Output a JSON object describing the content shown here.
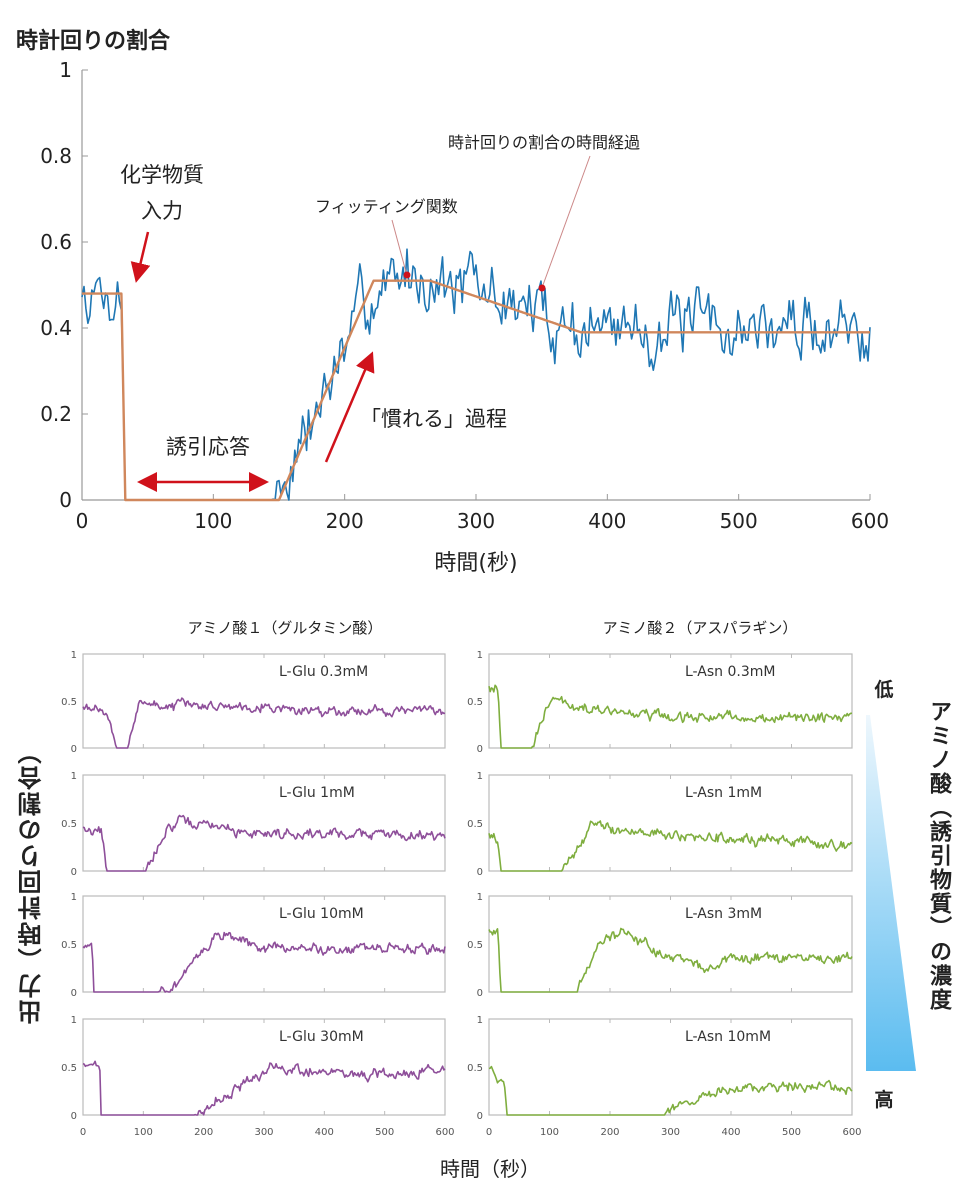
{
  "chart_data": [
    {
      "type": "line",
      "title": "時計回りの割合",
      "ylabel": "時計回りの割合",
      "xlabel": "時間(秒)",
      "xlim": [
        0,
        600
      ],
      "ylim": [
        0,
        1
      ],
      "xticks": [
        0,
        100,
        200,
        300,
        400,
        500,
        600
      ],
      "yticks": [
        "0",
        "0.2",
        "0.4",
        "0.6",
        "0.8",
        "1"
      ],
      "series": [
        {
          "name": "時計回りの割合の時間経過",
          "color": "#1f77b4",
          "noise": 0.05,
          "trend": [
            [
              0,
              0.48
            ],
            [
              30,
              0.48
            ],
            [
              33,
              0
            ],
            [
              145,
              0
            ],
            [
              150,
              0.02
            ],
            [
              185,
              0.25
            ],
            [
              220,
              0.48
            ],
            [
              250,
              0.53
            ],
            [
              270,
              0.52
            ],
            [
              380,
              0.4
            ],
            [
              600,
              0.4
            ]
          ]
        },
        {
          "name": "フィッティング関数",
          "color": "#d0875c",
          "noise": 0,
          "trend": [
            [
              0,
              0.48
            ],
            [
              30,
              0.48
            ],
            [
              33,
              0
            ],
            [
              150,
              0
            ],
            [
              222,
              0.51
            ],
            [
              265,
              0.51
            ],
            [
              380,
              0.39
            ],
            [
              600,
              0.39
            ]
          ]
        }
      ],
      "annotations": {
        "chemical_input_1": "化学物質",
        "chemical_input_2": "入力",
        "induced_response": "誘引応答",
        "habituation": "「慣れる」過程",
        "fitting": "フィッティング関数",
        "time_course": "時計回りの割合の時間経過"
      }
    },
    {
      "type": "line",
      "columns": [
        "アミノ酸１（グルタミン酸）",
        "アミノ酸２（アスパラギン）"
      ],
      "ylabel": "出力（時計回りの割合）",
      "xlabel": "時間（秒）",
      "concentration_label": "アミノ酸（誘引物質）の濃度",
      "low": "低",
      "high": "高",
      "xlim": [
        0,
        600
      ],
      "ylim": [
        0,
        1
      ],
      "xticks": [
        "0",
        "100",
        "200",
        "300",
        "400",
        "500",
        "600"
      ],
      "yticks": [
        "0",
        "0.5",
        "1"
      ],
      "panels": [
        {
          "label": "L-Glu 0.3mM",
          "col": 0,
          "color": "#8e4f9a",
          "trend": [
            [
              0,
              0.48
            ],
            [
              20,
              0.45
            ],
            [
              40,
              0.35
            ],
            [
              55,
              0
            ],
            [
              75,
              0
            ],
            [
              95,
              0.55
            ],
            [
              110,
              0.45
            ],
            [
              300,
              0.45
            ],
            [
              350,
              0.4
            ],
            [
              600,
              0.4
            ]
          ]
        },
        {
          "label": "L-Glu 1mM",
          "col": 0,
          "color": "#8e4f9a",
          "trend": [
            [
              0,
              0.45
            ],
            [
              30,
              0.42
            ],
            [
              40,
              0
            ],
            [
              105,
              0
            ],
            [
              140,
              0.45
            ],
            [
              160,
              0.5
            ],
            [
              230,
              0.47
            ],
            [
              250,
              0.4
            ],
            [
              600,
              0.38
            ]
          ]
        },
        {
          "label": "L-Glu 10mM",
          "col": 0,
          "color": "#8e4f9a",
          "trend": [
            [
              0,
              0.5
            ],
            [
              15,
              0.45
            ],
            [
              18,
              0
            ],
            [
              125,
              0
            ],
            [
              160,
              0.1
            ],
            [
              220,
              0.6
            ],
            [
              260,
              0.55
            ],
            [
              300,
              0.45
            ],
            [
              600,
              0.45
            ]
          ]
        },
        {
          "label": "L-Glu 30mM",
          "col": 0,
          "color": "#8e4f9a",
          "trend": [
            [
              0,
              0.55
            ],
            [
              28,
              0.5
            ],
            [
              30,
              0
            ],
            [
              185,
              0
            ],
            [
              260,
              0.3
            ],
            [
              310,
              0.48
            ],
            [
              400,
              0.45
            ],
            [
              500,
              0.4
            ],
            [
              600,
              0.5
            ]
          ]
        },
        {
          "label": "L-Asn 0.3mM",
          "col": 1,
          "color": "#7fae3f",
          "trend": [
            [
              0,
              0.65
            ],
            [
              15,
              0.65
            ],
            [
              20,
              0
            ],
            [
              70,
              0
            ],
            [
              90,
              0.35
            ],
            [
              110,
              0.52
            ],
            [
              150,
              0.42
            ],
            [
              300,
              0.32
            ],
            [
              600,
              0.32
            ]
          ]
        },
        {
          "label": "L-Asn 1mM",
          "col": 1,
          "color": "#7fae3f",
          "trend": [
            [
              0,
              0.4
            ],
            [
              15,
              0.3
            ],
            [
              20,
              0
            ],
            [
              120,
              0
            ],
            [
              170,
              0.48
            ],
            [
              250,
              0.4
            ],
            [
              400,
              0.33
            ],
            [
              600,
              0.27
            ]
          ]
        },
        {
          "label": "L-Asn 3mM",
          "col": 1,
          "color": "#7fae3f",
          "trend": [
            [
              0,
              0.65
            ],
            [
              15,
              0.6
            ],
            [
              20,
              0
            ],
            [
              145,
              0
            ],
            [
              185,
              0.55
            ],
            [
              220,
              0.6
            ],
            [
              360,
              0.22
            ],
            [
              390,
              0.35
            ],
            [
              600,
              0.35
            ]
          ]
        },
        {
          "label": "L-Asn 10mM",
          "col": 1,
          "color": "#7fae3f",
          "trend": [
            [
              0,
              0.45
            ],
            [
              25,
              0.35
            ],
            [
              30,
              0
            ],
            [
              290,
              0
            ],
            [
              370,
              0.25
            ],
            [
              420,
              0.3
            ],
            [
              600,
              0.27
            ]
          ]
        }
      ]
    }
  ]
}
